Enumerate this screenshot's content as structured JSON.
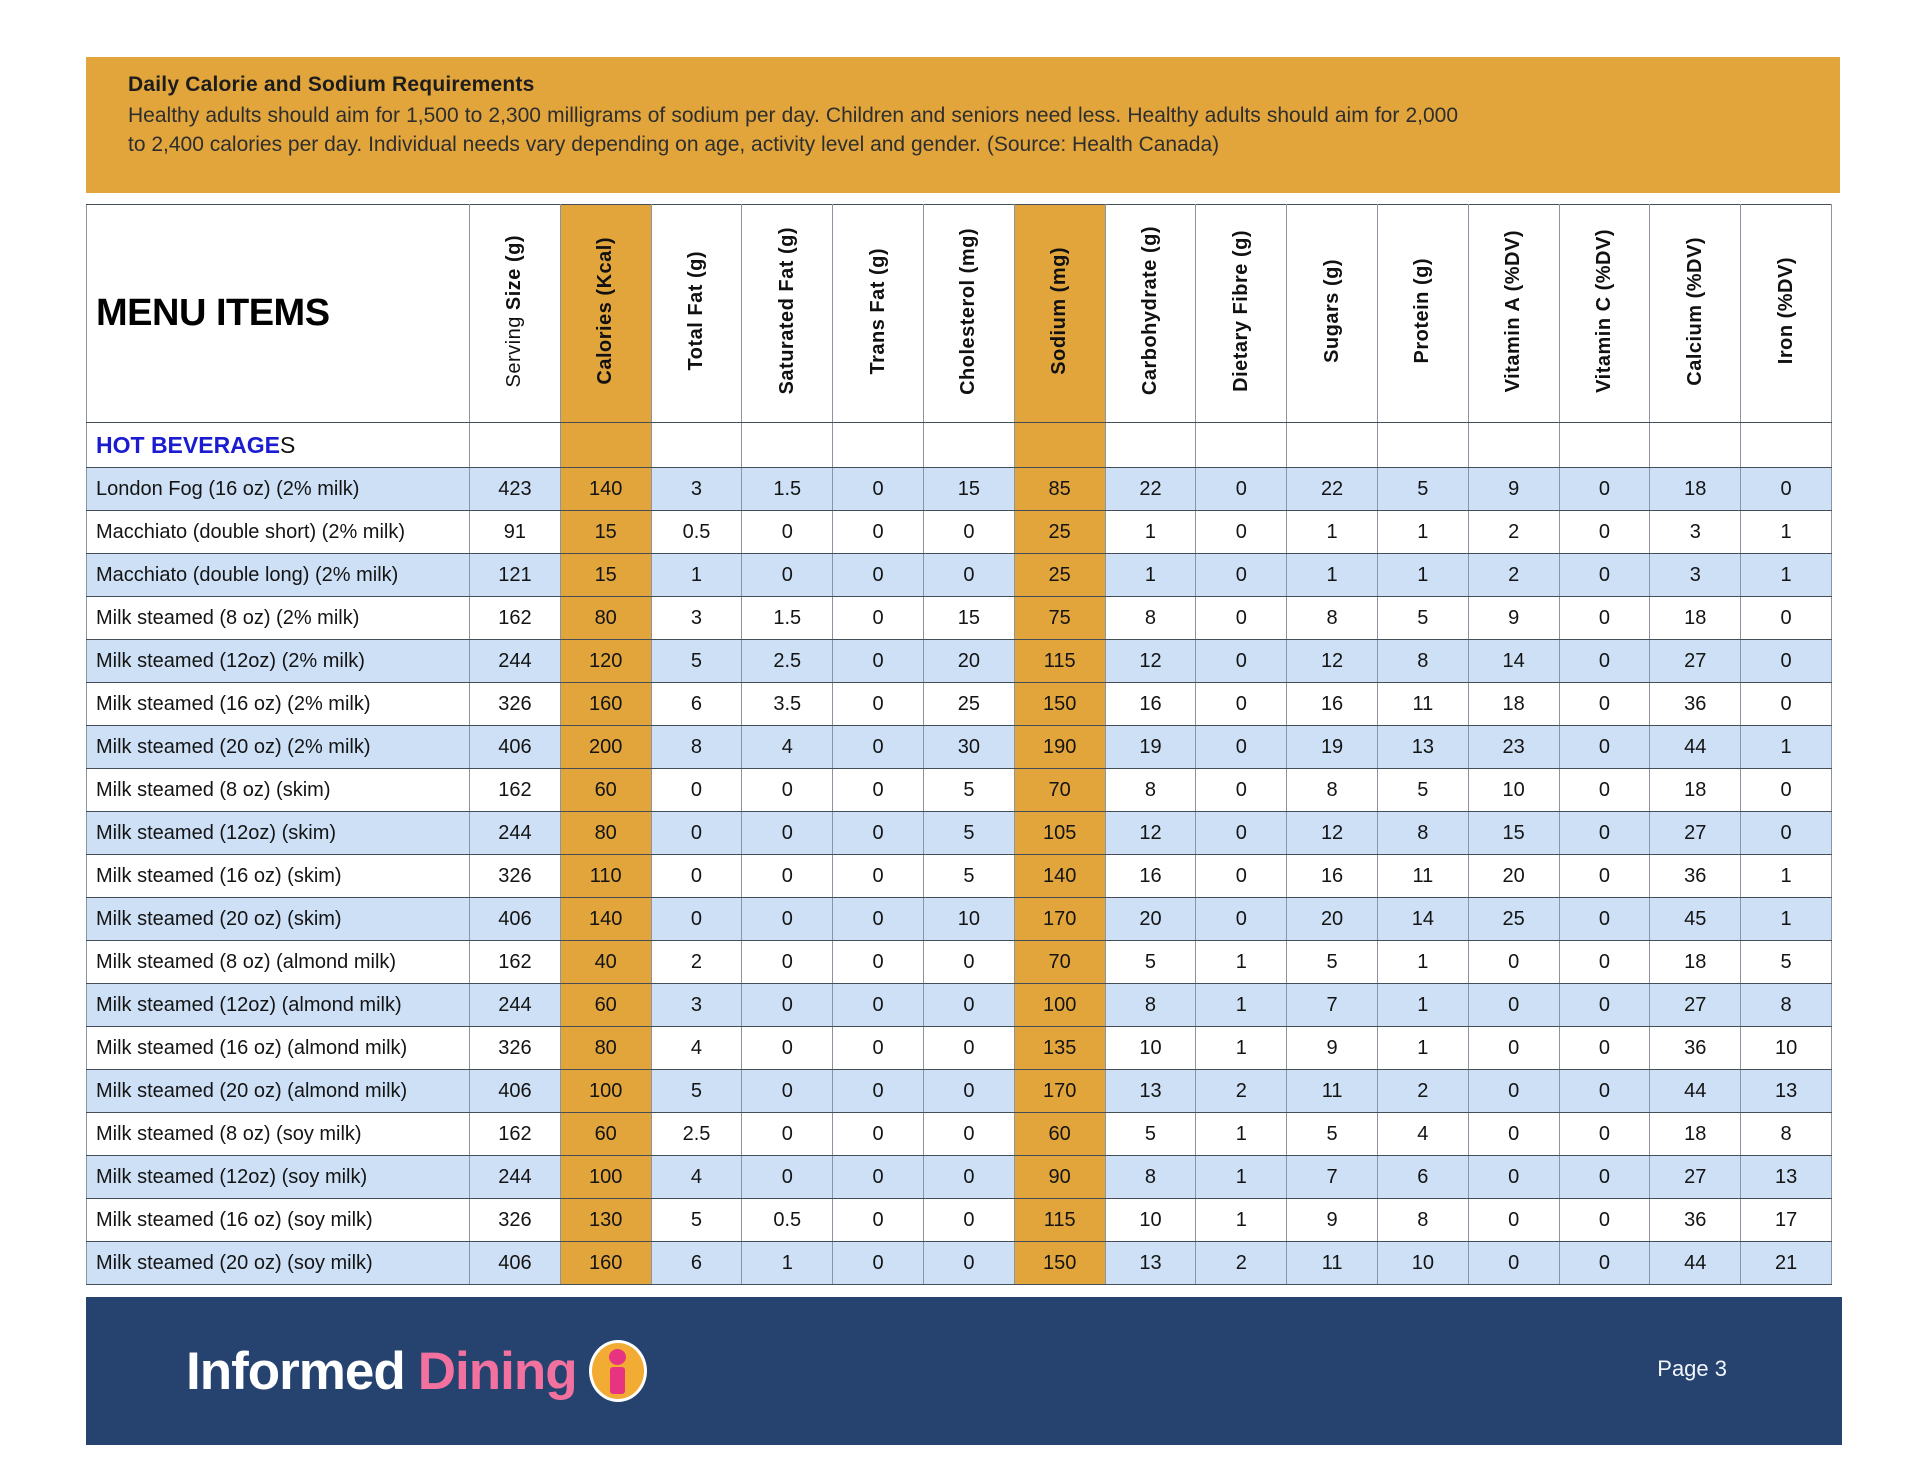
{
  "info_box": {
    "title": "Daily Calorie and Sodium Requirements",
    "body": "Healthy adults should aim for 1,500 to 2,300 milligrams of sodium per day. Children and seniors need less. Healthy adults should aim for 2,000 to 2,400 calories per day. Individual needs vary depending on age, activity level and gender. (Source: Health Canada)"
  },
  "table": {
    "menu_items_label": "MENU ITEMS",
    "columns": [
      {
        "name": "serving-size",
        "light": "Serving ",
        "bold": "Size (g)",
        "highlight": false
      },
      {
        "name": "calories",
        "bold": "Calories (Kcal)",
        "highlight": true
      },
      {
        "name": "total-fat",
        "bold": "Total Fat (g)",
        "highlight": false
      },
      {
        "name": "saturated-fat",
        "bold": "Saturated Fat (g)",
        "highlight": false
      },
      {
        "name": "trans-fat",
        "bold": "Trans Fat (g)",
        "highlight": false
      },
      {
        "name": "cholesterol",
        "bold": "Cholesterol (mg)",
        "highlight": false
      },
      {
        "name": "sodium",
        "bold": "Sodium (mg)",
        "highlight": true
      },
      {
        "name": "carbohydrate",
        "bold": "Carbohydrate (g)",
        "highlight": false
      },
      {
        "name": "dietary-fibre",
        "bold": "Dietary Fibre (g)",
        "highlight": false
      },
      {
        "name": "sugars",
        "bold": "Sugars  (g)",
        "highlight": false
      },
      {
        "name": "protein",
        "bold": "Protein (g)",
        "highlight": false
      },
      {
        "name": "vitamin-a",
        "bold": "Vitamin A (%DV)",
        "highlight": false
      },
      {
        "name": "vitamin-c",
        "bold": "Vitamin C (%DV)",
        "highlight": false
      },
      {
        "name": "calcium",
        "bold": "Calcium (%DV)",
        "highlight": false
      },
      {
        "name": "iron",
        "bold": "Iron (%DV)",
        "highlight": false
      }
    ],
    "section": {
      "label_main": "HOT BEVERAGE",
      "label_tail": "S"
    },
    "rows": [
      {
        "name": "London Fog (16 oz) (2% milk)",
        "values": [
          423,
          140,
          3,
          1.5,
          0,
          15,
          85,
          22,
          0,
          22,
          5,
          9,
          0,
          18,
          0
        ]
      },
      {
        "name": "Macchiato (double short) (2% milk)",
        "values": [
          91,
          15,
          0.5,
          0,
          0,
          0,
          25,
          1,
          0,
          1,
          1,
          2,
          0,
          3,
          1
        ]
      },
      {
        "name": "Macchiato (double long) (2% milk)",
        "values": [
          121,
          15,
          1,
          0,
          0,
          0,
          25,
          1,
          0,
          1,
          1,
          2,
          0,
          3,
          1
        ]
      },
      {
        "name": "Milk steamed (8 oz) (2% milk)",
        "values": [
          162,
          80,
          3,
          1.5,
          0,
          15,
          75,
          8,
          0,
          8,
          5,
          9,
          0,
          18,
          0
        ]
      },
      {
        "name": "Milk steamed (12oz) (2% milk)",
        "values": [
          244,
          120,
          5,
          2.5,
          0,
          20,
          115,
          12,
          0,
          12,
          8,
          14,
          0,
          27,
          0
        ]
      },
      {
        "name": "Milk steamed (16 oz) (2% milk)",
        "values": [
          326,
          160,
          6,
          3.5,
          0,
          25,
          150,
          16,
          0,
          16,
          11,
          18,
          0,
          36,
          0
        ]
      },
      {
        "name": "Milk steamed (20 oz) (2% milk)",
        "values": [
          406,
          200,
          8,
          4,
          0,
          30,
          190,
          19,
          0,
          19,
          13,
          23,
          0,
          44,
          1
        ]
      },
      {
        "name": "Milk steamed (8 oz) (skim)",
        "values": [
          162,
          60,
          0,
          0,
          0,
          5,
          70,
          8,
          0,
          8,
          5,
          10,
          0,
          18,
          0
        ]
      },
      {
        "name": "Milk steamed (12oz) (skim)",
        "values": [
          244,
          80,
          0,
          0,
          0,
          5,
          105,
          12,
          0,
          12,
          8,
          15,
          0,
          27,
          0
        ]
      },
      {
        "name": "Milk steamed (16 oz) (skim)",
        "values": [
          326,
          110,
          0,
          0,
          0,
          5,
          140,
          16,
          0,
          16,
          11,
          20,
          0,
          36,
          1
        ]
      },
      {
        "name": "Milk steamed (20 oz) (skim)",
        "values": [
          406,
          140,
          0,
          0,
          0,
          10,
          170,
          20,
          0,
          20,
          14,
          25,
          0,
          45,
          1
        ]
      },
      {
        "name": "Milk steamed (8 oz) (almond milk)",
        "values": [
          162,
          40,
          2,
          0,
          0,
          0,
          70,
          5,
          1,
          5,
          1,
          0,
          0,
          18,
          5
        ]
      },
      {
        "name": "Milk steamed (12oz) (almond milk)",
        "values": [
          244,
          60,
          3,
          0,
          0,
          0,
          100,
          8,
          1,
          7,
          1,
          0,
          0,
          27,
          8
        ]
      },
      {
        "name": "Milk steamed (16 oz) (almond milk)",
        "values": [
          326,
          80,
          4,
          0,
          0,
          0,
          135,
          10,
          1,
          9,
          1,
          0,
          0,
          36,
          10
        ]
      },
      {
        "name": "Milk steamed (20 oz) (almond milk)",
        "values": [
          406,
          100,
          5,
          0,
          0,
          0,
          170,
          13,
          2,
          11,
          2,
          0,
          0,
          44,
          13
        ]
      },
      {
        "name": "Milk steamed (8 oz) (soy milk)",
        "values": [
          162,
          60,
          2.5,
          0,
          0,
          0,
          60,
          5,
          1,
          5,
          4,
          0,
          0,
          18,
          8
        ]
      },
      {
        "name": "Milk steamed (12oz) (soy milk)",
        "values": [
          244,
          100,
          4,
          0,
          0,
          0,
          90,
          8,
          1,
          7,
          6,
          0,
          0,
          27,
          13
        ]
      },
      {
        "name": "Milk steamed (16 oz) (soy milk)",
        "values": [
          326,
          130,
          5,
          0.5,
          0,
          0,
          115,
          10,
          1,
          9,
          8,
          0,
          0,
          36,
          17
        ]
      },
      {
        "name": "Milk steamed (20 oz) (soy milk)",
        "values": [
          406,
          160,
          6,
          1,
          0,
          0,
          150,
          13,
          2,
          11,
          10,
          0,
          0,
          44,
          21
        ]
      }
    ]
  },
  "footer": {
    "logo_informed": "Informed",
    "logo_dining": "Dining",
    "page_label": "Page 3"
  },
  "colors": {
    "gold": "#E2A53C",
    "stripe_blue": "#CDE0F6",
    "footer_navy": "#264370",
    "logo_pink": "#F2719E",
    "icon_pink": "#E73380",
    "section_blue": "#1b1bd1"
  }
}
